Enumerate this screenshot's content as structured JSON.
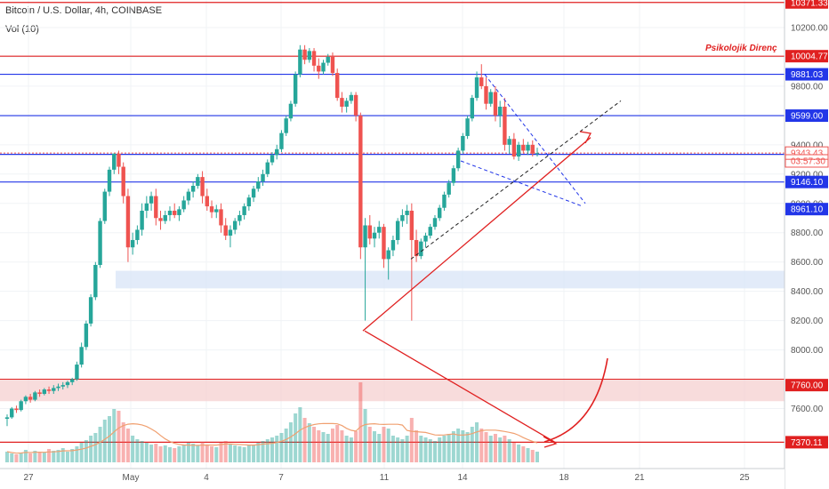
{
  "header": {
    "symbol_title": "Bitcoin / U.S. Dollar, 4h, COINBASE",
    "volume_label": "Vol (10)"
  },
  "colors": {
    "up": "#26a69a",
    "down": "#ef5350",
    "support_line": "#2236e8",
    "resistance_line": "#e02020",
    "zone_blue": "#d8e4f7",
    "zone_red": "#f6d0d0",
    "volume_ma": "#f0a070",
    "trend": "#222222"
  },
  "chart_data": {
    "type": "candlestick",
    "title": "Bitcoin / U.S. Dollar, 4h, COINBASE",
    "y_axis_ticks": [
      7600,
      8000,
      8200,
      8400,
      8600,
      8800,
      9000,
      9200,
      9400,
      9600,
      9800,
      10000,
      10200
    ],
    "y_range": [
      7250,
      10430
    ],
    "x_tick_labels": [
      "27",
      "May",
      "4",
      "7",
      "11",
      "14",
      "18",
      "21",
      "25"
    ],
    "grid": true,
    "price_levels": [
      {
        "label": "10371.33",
        "value": 10371.33,
        "kind": "resistance"
      },
      {
        "label": "10004.77",
        "value": 10004.77,
        "kind": "resistance"
      },
      {
        "label": "9881.03",
        "value": 9881.03,
        "kind": "support"
      },
      {
        "label": "9599.00",
        "value": 9599.0,
        "kind": "support"
      },
      {
        "label": "9334.79",
        "value": 9334.79,
        "kind": "support"
      },
      {
        "label": "9146.10",
        "value": 9146.1,
        "kind": "support"
      },
      {
        "label": "7370.11",
        "value": 7370.11,
        "kind": "resistance"
      }
    ],
    "axis_badges": [
      {
        "label": "9343.43",
        "value": 9343.43,
        "style": "current"
      },
      {
        "label": "03:57:30",
        "value": 9290,
        "style": "timer"
      },
      {
        "label": "8961.10",
        "value": 8961.1,
        "style": "level"
      },
      {
        "label": "7760.00",
        "value": 7760.0,
        "style": "red-level"
      }
    ],
    "annotation": "Psikolojik Direnç",
    "zones": [
      {
        "from": 8420,
        "to": 8540,
        "kind": "blue"
      },
      {
        "from": 7650,
        "to": 7800,
        "kind": "red"
      }
    ],
    "volume_indicator": "Vol (10)",
    "candles": [
      [
        7530,
        7560,
        7480,
        7540
      ],
      [
        7540,
        7610,
        7530,
        7600
      ],
      [
        7600,
        7620,
        7570,
        7590
      ],
      [
        7590,
        7660,
        7580,
        7650
      ],
      [
        7650,
        7690,
        7630,
        7680
      ],
      [
        7680,
        7700,
        7640,
        7660
      ],
      [
        7660,
        7720,
        7650,
        7710
      ],
      [
        7710,
        7730,
        7680,
        7700
      ],
      [
        7700,
        7740,
        7690,
        7730
      ],
      [
        7730,
        7750,
        7700,
        7720
      ],
      [
        7720,
        7760,
        7700,
        7740
      ],
      [
        7740,
        7770,
        7720,
        7750
      ],
      [
        7750,
        7780,
        7730,
        7760
      ],
      [
        7760,
        7790,
        7740,
        7780
      ],
      [
        7780,
        7810,
        7760,
        7800
      ],
      [
        7800,
        7920,
        7790,
        7900
      ],
      [
        7900,
        8050,
        7880,
        8020
      ],
      [
        8020,
        8200,
        8000,
        8180
      ],
      [
        8180,
        8380,
        8160,
        8360
      ],
      [
        8360,
        8600,
        8340,
        8580
      ],
      [
        8580,
        8900,
        8560,
        8880
      ],
      [
        8880,
        9100,
        8860,
        9080
      ],
      [
        9080,
        9250,
        9050,
        9230
      ],
      [
        9230,
        9340,
        9200,
        9340
      ],
      [
        9340,
        9360,
        9200,
        9250
      ],
      [
        9250,
        9280,
        9000,
        9050
      ],
      [
        9050,
        9100,
        8600,
        8700
      ],
      [
        8700,
        8800,
        8650,
        8750
      ],
      [
        8750,
        8850,
        8720,
        8820
      ],
      [
        8820,
        9000,
        8780,
        8950
      ],
      [
        8950,
        9050,
        8900,
        9000
      ],
      [
        9000,
        9080,
        8950,
        9050
      ],
      [
        9050,
        9100,
        8850,
        8900
      ],
      [
        8900,
        8950,
        8820,
        8880
      ],
      [
        8880,
        8950,
        8860,
        8920
      ],
      [
        8920,
        8980,
        8880,
        8950
      ],
      [
        8950,
        9000,
        8900,
        8920
      ],
      [
        8920,
        8980,
        8880,
        8960
      ],
      [
        8960,
        9050,
        8940,
        9020
      ],
      [
        9020,
        9100,
        8990,
        9080
      ],
      [
        9080,
        9150,
        9040,
        9120
      ],
      [
        9120,
        9200,
        9100,
        9180
      ],
      [
        9180,
        9220,
        9000,
        9050
      ],
      [
        9050,
        9100,
        8950,
        8980
      ],
      [
        8980,
        9020,
        8900,
        8940
      ],
      [
        8940,
        8990,
        8900,
        8960
      ],
      [
        8960,
        9000,
        8800,
        8850
      ],
      [
        8850,
        8900,
        8750,
        8780
      ],
      [
        8780,
        8850,
        8700,
        8820
      ],
      [
        8820,
        8900,
        8790,
        8880
      ],
      [
        8880,
        8950,
        8850,
        8920
      ],
      [
        8920,
        9000,
        8890,
        8980
      ],
      [
        8980,
        9060,
        8950,
        9040
      ],
      [
        9040,
        9120,
        9010,
        9100
      ],
      [
        9100,
        9180,
        9080,
        9150
      ],
      [
        9150,
        9230,
        9120,
        9200
      ],
      [
        9200,
        9300,
        9180,
        9280
      ],
      [
        9280,
        9350,
        9260,
        9330
      ],
      [
        9330,
        9400,
        9300,
        9370
      ],
      [
        9370,
        9500,
        9350,
        9480
      ],
      [
        9480,
        9600,
        9460,
        9580
      ],
      [
        9580,
        9700,
        9560,
        9680
      ],
      [
        9680,
        9900,
        9660,
        9880
      ],
      [
        9880,
        10080,
        9860,
        10050
      ],
      [
        10050,
        10080,
        9950,
        9980
      ],
      [
        9980,
        10060,
        9960,
        10040
      ],
      [
        10040,
        10060,
        9900,
        9940
      ],
      [
        9940,
        9990,
        9850,
        9900
      ],
      [
        9900,
        9980,
        9880,
        9960
      ],
      [
        9960,
        10020,
        9940,
        10000
      ],
      [
        10000,
        10030,
        9870,
        9890
      ],
      [
        9890,
        9920,
        9700,
        9720
      ],
      [
        9720,
        9760,
        9620,
        9660
      ],
      [
        9660,
        9720,
        9620,
        9700
      ],
      [
        9700,
        9760,
        9680,
        9740
      ],
      [
        9740,
        9760,
        9560,
        9600
      ],
      [
        9600,
        9620,
        8620,
        8700
      ],
      [
        8700,
        8900,
        8200,
        8850
      ],
      [
        8850,
        8920,
        8720,
        8760
      ],
      [
        8760,
        8840,
        8700,
        8800
      ],
      [
        8800,
        8880,
        8760,
        8840
      ],
      [
        8840,
        8860,
        8560,
        8620
      ],
      [
        8620,
        8700,
        8480,
        8680
      ],
      [
        8680,
        8780,
        8640,
        8750
      ],
      [
        8750,
        8900,
        8720,
        8880
      ],
      [
        8880,
        8960,
        8840,
        8920
      ],
      [
        8920,
        8990,
        8860,
        8950
      ],
      [
        8950,
        9000,
        8200,
        8750
      ],
      [
        8750,
        8820,
        8600,
        8640
      ],
      [
        8640,
        8760,
        8620,
        8740
      ],
      [
        8740,
        8800,
        8700,
        8780
      ],
      [
        8780,
        8860,
        8760,
        8840
      ],
      [
        8840,
        8920,
        8820,
        8900
      ],
      [
        8900,
        8990,
        8880,
        8970
      ],
      [
        8970,
        9080,
        8950,
        9060
      ],
      [
        9060,
        9160,
        9040,
        9140
      ],
      [
        9140,
        9260,
        9120,
        9240
      ],
      [
        9240,
        9380,
        9220,
        9360
      ],
      [
        9360,
        9480,
        9340,
        9460
      ],
      [
        9460,
        9600,
        9440,
        9580
      ],
      [
        9580,
        9740,
        9560,
        9720
      ],
      [
        9720,
        9900,
        9700,
        9860
      ],
      [
        9860,
        9950,
        9780,
        9800
      ],
      [
        9800,
        9860,
        9640,
        9680
      ],
      [
        9680,
        9780,
        9660,
        9760
      ],
      [
        9760,
        9800,
        9560,
        9600
      ],
      [
        9600,
        9700,
        9520,
        9660
      ],
      [
        9660,
        9720,
        9360,
        9400
      ],
      [
        9400,
        9460,
        9340,
        9440
      ],
      [
        9440,
        9480,
        9300,
        9320
      ],
      [
        9320,
        9420,
        9290,
        9400
      ],
      [
        9400,
        9440,
        9340,
        9360
      ],
      [
        9360,
        9420,
        9330,
        9400
      ],
      [
        9400,
        9430,
        9320,
        9340
      ],
      [
        9340,
        9380,
        9320,
        9343
      ]
    ],
    "volumes": [
      12,
      10,
      9,
      11,
      14,
      10,
      13,
      12,
      11,
      15,
      13,
      14,
      16,
      12,
      15,
      18,
      22,
      25,
      30,
      33,
      40,
      48,
      52,
      60,
      58,
      45,
      38,
      30,
      26,
      24,
      22,
      20,
      21,
      18,
      19,
      17,
      16,
      18,
      20,
      22,
      21,
      19,
      23,
      20,
      18,
      17,
      22,
      24,
      20,
      19,
      18,
      17,
      19,
      20,
      22,
      24,
      26,
      28,
      30,
      33,
      38,
      45,
      55,
      62,
      50,
      44,
      40,
      36,
      34,
      32,
      38,
      42,
      36,
      30,
      28,
      35,
      90,
      60,
      40,
      35,
      32,
      40,
      38,
      30,
      28,
      26,
      30,
      50,
      36,
      30,
      28,
      26,
      24,
      28,
      30,
      32,
      35,
      38,
      36,
      34,
      40,
      45,
      38,
      34,
      30,
      32,
      28,
      30,
      26,
      22,
      20,
      18,
      16,
      14,
      12
    ]
  }
}
